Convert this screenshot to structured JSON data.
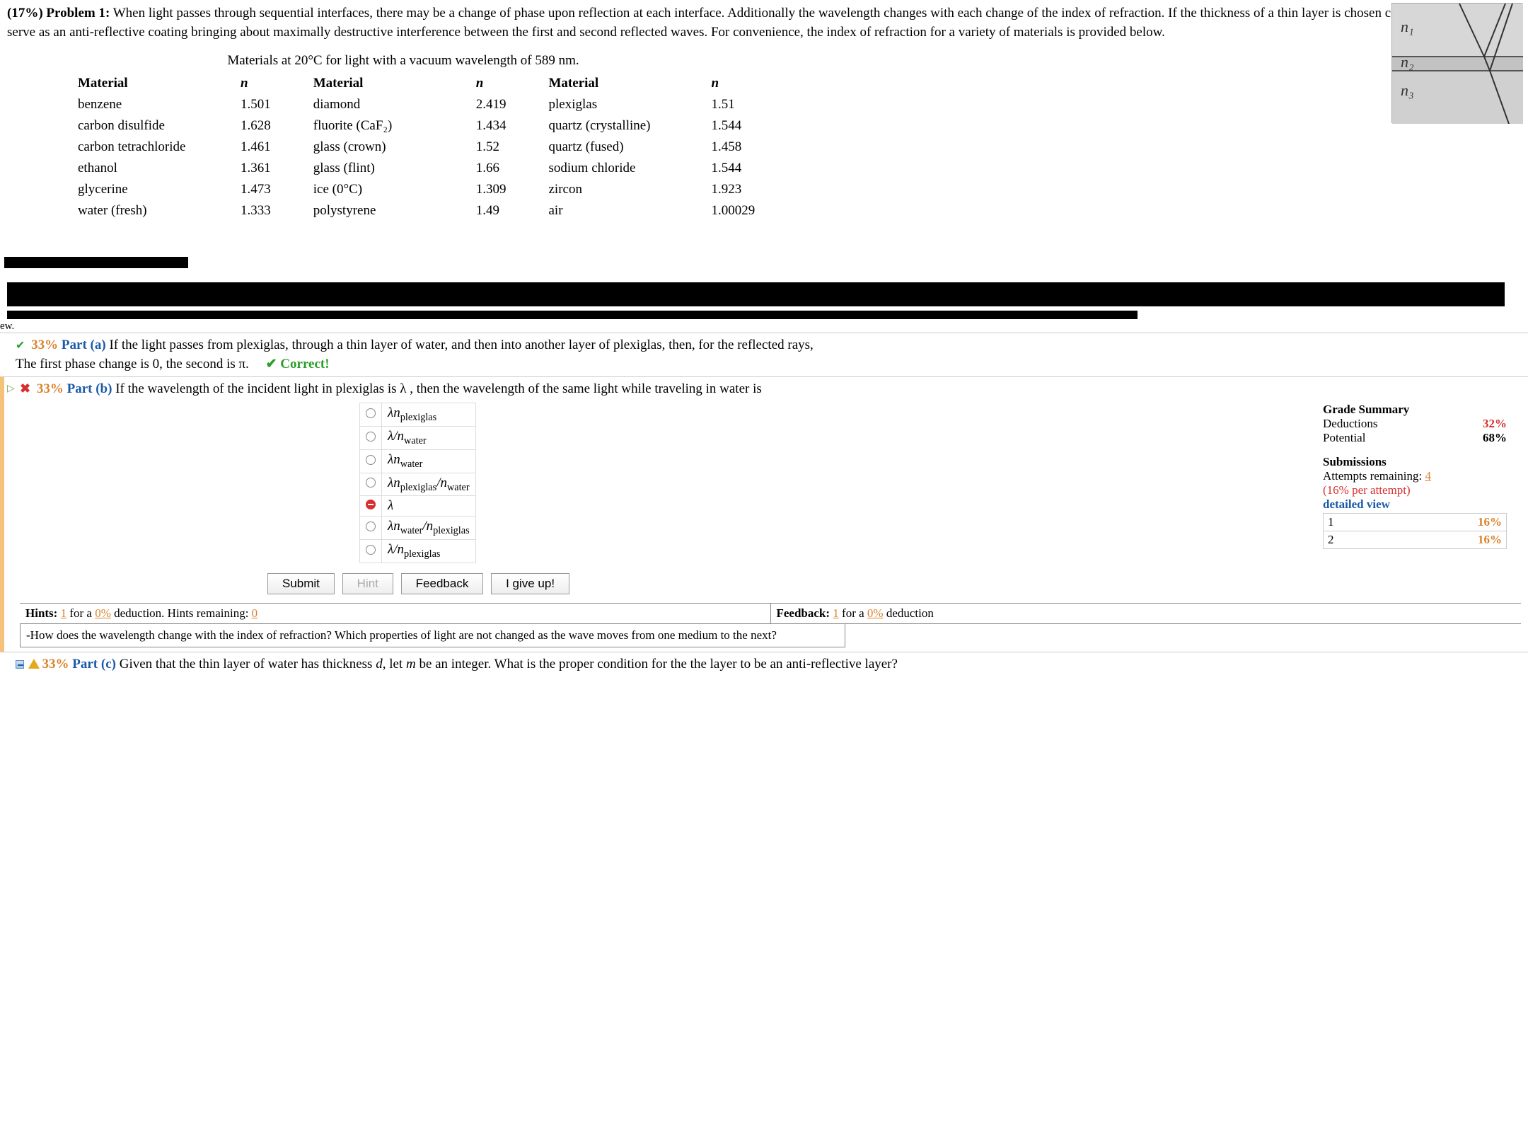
{
  "problem": {
    "weight": "(17%)",
    "label": "Problem 1:",
    "text": "When light passes through sequential interfaces, there may be a change of phase upon reflection at each interface. Additionally the wavelength changes with each change of the index of refraction. If the thickness of a thin layer is chosen correctly, then it will serve as an anti-reflective coating bringing about maximally destructive interference between the first and second reflected waves. For convenience, the index of refraction for a variety of materials is provided below."
  },
  "diagram": {
    "labels": {
      "n1": "n₁",
      "n2": "n₂",
      "n3": "n₃"
    },
    "colors": {
      "top": "#d7d7d7",
      "mid": "#c2c2c2",
      "bot": "#d0d0d0",
      "line": "#555"
    }
  },
  "materials": {
    "caption": "Materials at 20°C for light with a vacuum wavelength of 589 nm.",
    "header_material": "Material",
    "header_n": "n",
    "cols": [
      [
        {
          "m": "benzene",
          "n": "1.501"
        },
        {
          "m": "carbon disulfide",
          "n": "1.628"
        },
        {
          "m": "carbon tetrachloride",
          "n": "1.461"
        },
        {
          "m": "ethanol",
          "n": "1.361"
        },
        {
          "m": "glycerine",
          "n": "1.473"
        },
        {
          "m": "water (fresh)",
          "n": "1.333"
        }
      ],
      [
        {
          "m": "diamond",
          "n": "2.419"
        },
        {
          "m": "fluorite (CaF₂)",
          "n": "1.434"
        },
        {
          "m": "glass (crown)",
          "n": "1.52"
        },
        {
          "m": "glass (flint)",
          "n": "1.66"
        },
        {
          "m": "ice (0°C)",
          "n": "1.309"
        },
        {
          "m": "polystyrene",
          "n": "1.49"
        }
      ],
      [
        {
          "m": "plexiglas",
          "n": "1.51"
        },
        {
          "m": "quartz (crystalline)",
          "n": "1.544"
        },
        {
          "m": "quartz (fused)",
          "n": "1.458"
        },
        {
          "m": "sodium chloride",
          "n": "1.544"
        },
        {
          "m": "zircon",
          "n": "1.923"
        },
        {
          "m": "air",
          "n": "1.00029"
        }
      ]
    ]
  },
  "ew_text": "ew.",
  "part_a": {
    "percent": "33%",
    "label": "Part (a)",
    "question": "If the light passes from plexiglas, through a thin layer of water, and then into another layer of plexiglas, then, for the reflected rays,",
    "answer": "The first phase change is 0, the second is π.",
    "correct": "✔ Correct!"
  },
  "part_b": {
    "percent": "33%",
    "label": "Part (b)",
    "question": "If the wavelength of the incident light in plexiglas is λ , then the wavelength of the same light while traveling in water is",
    "options": [
      {
        "html": "λn<sub>plexiglas</sub>",
        "wrong": false
      },
      {
        "html": "λ/n<sub>water</sub>",
        "wrong": false
      },
      {
        "html": "λn<sub>water</sub>",
        "wrong": false
      },
      {
        "html": "λn<sub>plexiglas</sub>/n<sub>water</sub>",
        "wrong": false
      },
      {
        "html": "λ",
        "wrong": true
      },
      {
        "html": "λn<sub>water</sub>/n<sub>plexiglas</sub>",
        "wrong": false
      },
      {
        "html": "λ/n<sub>plexiglas</sub>",
        "wrong": false
      }
    ],
    "buttons": {
      "submit": "Submit",
      "hint": "Hint",
      "feedback": "Feedback",
      "giveup": "I give up!"
    },
    "grade": {
      "title": "Grade Summary",
      "deductions_label": "Deductions",
      "deductions": "32%",
      "potential_label": "Potential",
      "potential": "68%",
      "sub_title": "Submissions",
      "attempts_label": "Attempts remaining: ",
      "attempts": "4",
      "per_attempt": "(16% per attempt)",
      "detailed": "detailed view",
      "rows": [
        {
          "n": "1",
          "p": "16%"
        },
        {
          "n": "2",
          "p": "16%"
        }
      ]
    },
    "hints_bar": {
      "left_label": "Hints:",
      "left_n": "1",
      "left_mid": " for a ",
      "left_pct": "0%",
      "left_tail": " deduction. Hints remaining: ",
      "left_rem": "0",
      "right_label": "Feedback:",
      "right_n": "1",
      "right_mid": " for a ",
      "right_pct": "0%",
      "right_tail": " deduction"
    },
    "hint_text": "-How does the wavelength change with the index of refraction? Which properties of light are not changed as the wave moves from one medium to the next?"
  },
  "part_c": {
    "percent": "33%",
    "label": "Part (c)",
    "question_pre": "Given that the thin layer of water has thickness ",
    "var_d": "d",
    "question_mid": ", let ",
    "var_m": "m",
    "question_post": " be an integer. What is the proper condition for the the layer to be an anti-reflective layer?"
  }
}
